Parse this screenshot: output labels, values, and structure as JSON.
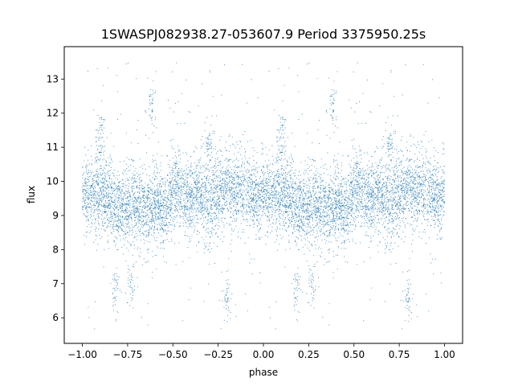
{
  "chart_data": {
    "type": "scatter",
    "title": "1SWASPJ082938.27-053607.9 Period 3375950.25s",
    "xlabel": "phase",
    "ylabel": "flux",
    "xlim": [
      -1.1,
      1.1
    ],
    "ylim": [
      5.25,
      13.95
    ],
    "xticks": [
      -1.0,
      -0.75,
      -0.5,
      -0.25,
      0.0,
      0.25,
      0.5,
      0.75,
      1.0
    ],
    "xtick_labels": [
      "−1.00",
      "−0.75",
      "−0.50",
      "−0.25",
      "0.00",
      "0.25",
      "0.50",
      "0.75",
      "1.00"
    ],
    "yticks": [
      6,
      7,
      8,
      9,
      10,
      11,
      12,
      13
    ],
    "ytick_labels": [
      "6",
      "7",
      "8",
      "9",
      "10",
      "11",
      "12",
      "13"
    ],
    "grid": false,
    "marker_color": "#1f77b4",
    "phase_range": [
      -1.0,
      1.0
    ],
    "folded_period_phase": 1.0,
    "flux_typical": 9.6,
    "flux_spread_range": [
      8.6,
      10.6
    ],
    "flux_outlier_range": [
      5.6,
      13.5
    ],
    "profile_phase": [
      0.0,
      0.05,
      0.1,
      0.15,
      0.2,
      0.25,
      0.3,
      0.35,
      0.4,
      0.45,
      0.5,
      0.55,
      0.6,
      0.65,
      0.7,
      0.75,
      0.8,
      0.85,
      0.9,
      0.95,
      1.0
    ],
    "profile_mean_flux": [
      9.7,
      9.6,
      9.8,
      9.5,
      9.2,
      9.2,
      9.3,
      9.1,
      9.4,
      9.1,
      9.7,
      9.6,
      9.5,
      9.6,
      9.4,
      9.6,
      9.8,
      9.7,
      9.8,
      9.5,
      9.7
    ],
    "profile_min_flux": [
      8.6,
      8.4,
      8.7,
      8.3,
      8.0,
      8.1,
      8.2,
      8.0,
      8.4,
      8.0,
      8.6,
      8.5,
      8.3,
      8.5,
      8.3,
      8.5,
      8.7,
      8.6,
      8.8,
      8.3,
      8.6
    ],
    "profile_max_flux": [
      10.8,
      10.6,
      11.2,
      10.6,
      10.2,
      10.3,
      10.4,
      10.2,
      10.5,
      10.1,
      10.9,
      10.6,
      10.5,
      10.8,
      11.1,
      10.6,
      11.0,
      10.8,
      11.3,
      10.6,
      10.9
    ],
    "notable_clumps": [
      {
        "phase": 0.1,
        "flux": 11.5
      },
      {
        "phase": 0.18,
        "flux": 6.9
      },
      {
        "phase": 0.27,
        "flux": 6.95
      },
      {
        "phase": 0.38,
        "flux": 12.2
      },
      {
        "phase": 0.7,
        "flux": 11.0
      },
      {
        "phase": 0.8,
        "flux": 6.6
      }
    ]
  }
}
